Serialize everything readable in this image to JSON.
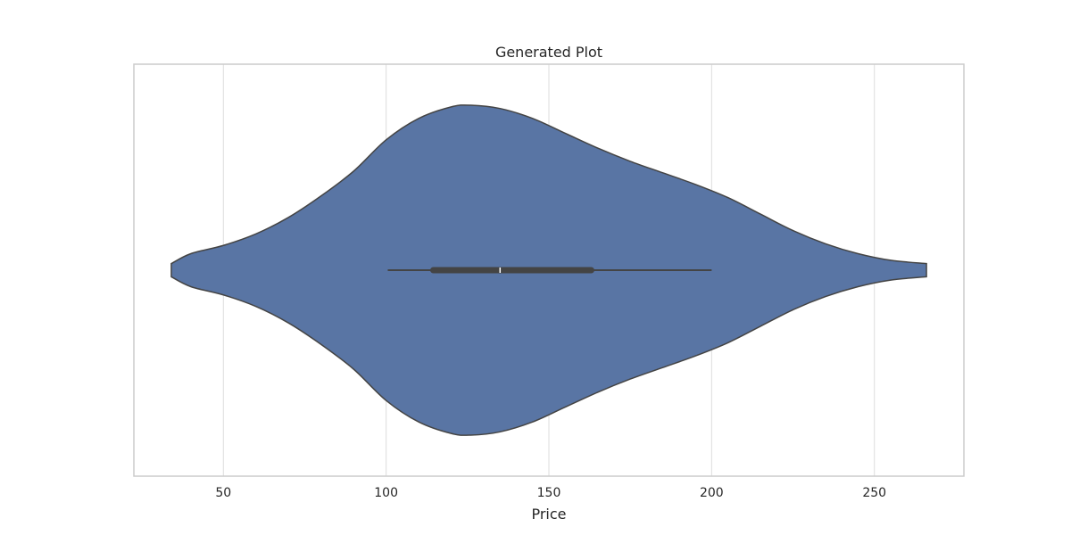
{
  "chart_data": {
    "type": "violin",
    "title": "Generated Plot",
    "xlabel": "Price",
    "ylabel": "",
    "xlim": [
      22.5,
      277.5
    ],
    "x_ticks": [
      50,
      100,
      150,
      200,
      250
    ],
    "grid": true,
    "colors": {
      "fill": "#5975a4",
      "edge": "#444444",
      "box": "#444444",
      "grid": "#dddddd",
      "spine": "#cccccc",
      "median": "#ffffff"
    },
    "density": [
      {
        "x": 34,
        "w": 0.04
      },
      {
        "x": 40,
        "w": 0.1
      },
      {
        "x": 50,
        "w": 0.15
      },
      {
        "x": 60,
        "w": 0.22
      },
      {
        "x": 70,
        "w": 0.32
      },
      {
        "x": 80,
        "w": 0.45
      },
      {
        "x": 90,
        "w": 0.6
      },
      {
        "x": 100,
        "w": 0.79
      },
      {
        "x": 110,
        "w": 0.92
      },
      {
        "x": 120,
        "w": 0.99
      },
      {
        "x": 126,
        "w": 1.0
      },
      {
        "x": 135,
        "w": 0.98
      },
      {
        "x": 145,
        "w": 0.92
      },
      {
        "x": 155,
        "w": 0.83
      },
      {
        "x": 165,
        "w": 0.74
      },
      {
        "x": 175,
        "w": 0.66
      },
      {
        "x": 185,
        "w": 0.59
      },
      {
        "x": 195,
        "w": 0.52
      },
      {
        "x": 205,
        "w": 0.44
      },
      {
        "x": 215,
        "w": 0.34
      },
      {
        "x": 225,
        "w": 0.24
      },
      {
        "x": 235,
        "w": 0.16
      },
      {
        "x": 245,
        "w": 0.1
      },
      {
        "x": 255,
        "w": 0.06
      },
      {
        "x": 266,
        "w": 0.04
      }
    ],
    "box": {
      "whisker_low": 100.5,
      "q1": 114.5,
      "median": 135,
      "q3": 163,
      "whisker_high": 200
    }
  }
}
